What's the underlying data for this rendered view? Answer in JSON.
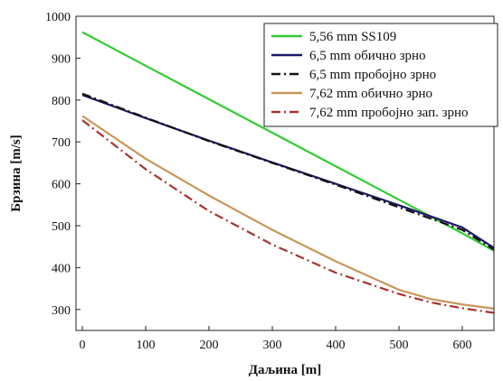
{
  "chart_data": {
    "type": "line",
    "xlabel": "Даљина [m]",
    "ylabel": "Брзина [m/s]",
    "xlim": [
      -10,
      650
    ],
    "ylim": [
      250,
      1000
    ],
    "xticks": [
      0,
      100,
      200,
      300,
      400,
      500,
      600
    ],
    "yticks": [
      300,
      400,
      500,
      600,
      700,
      800,
      900,
      1000
    ],
    "legend_position": "top-right",
    "series": [
      {
        "name": "5,56 mm SS109",
        "color": "#33cc33",
        "dash": "solid",
        "x": [
          0,
          100,
          200,
          300,
          400,
          500,
          600,
          650
        ],
        "y": [
          962,
          882,
          802,
          722,
          642,
          562,
          482,
          440
        ]
      },
      {
        "name": "6,5 mm обично зрно",
        "color": "#1a1a66",
        "dash": "solid",
        "x": [
          0,
          100,
          200,
          300,
          400,
          500,
          600,
          650
        ],
        "y": [
          812,
          757,
          703,
          651,
          600,
          549,
          496,
          447
        ]
      },
      {
        "name": "6,5 mm пробојно зрно",
        "color": "#111111",
        "dash": "dashdot",
        "x": [
          0,
          100,
          200,
          300,
          400,
          500,
          600,
          650
        ],
        "y": [
          815,
          758,
          702,
          650,
          598,
          544,
          490,
          443
        ]
      },
      {
        "name": "7,62 mm обично зрно",
        "color": "#c8965a",
        "dash": "solid",
        "x": [
          0,
          100,
          200,
          300,
          400,
          500,
          550,
          600,
          650
        ],
        "y": [
          762,
          660,
          572,
          490,
          415,
          347,
          325,
          312,
          302
        ]
      },
      {
        "name": "7,62 mm пробојно зап. зрно",
        "color": "#a8342e",
        "dash": "dashdot",
        "x": [
          0,
          100,
          200,
          300,
          400,
          500,
          550,
          600,
          650
        ],
        "y": [
          752,
          635,
          535,
          455,
          388,
          337,
          317,
          303,
          292
        ]
      }
    ]
  }
}
